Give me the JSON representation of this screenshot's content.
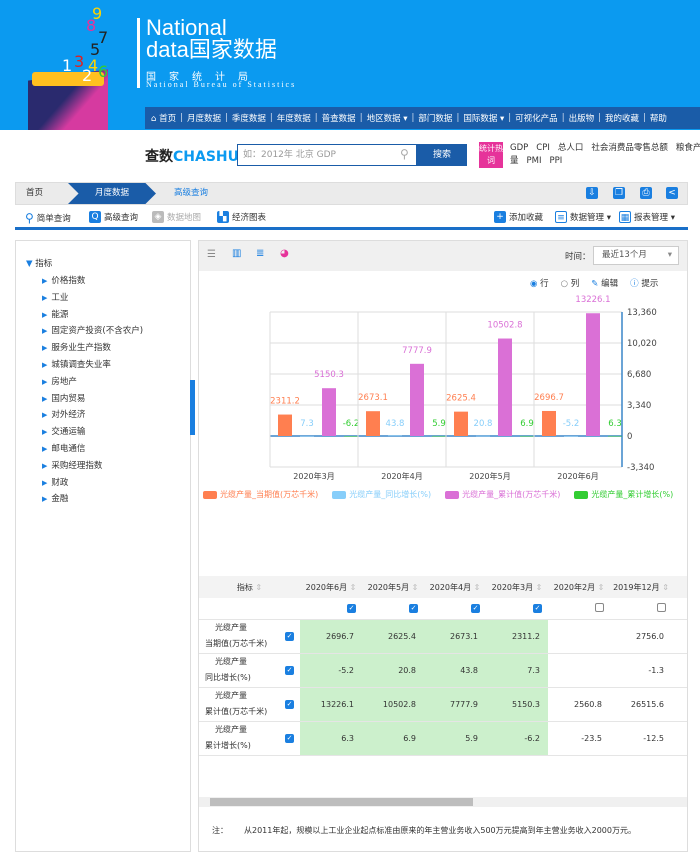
{
  "header": {
    "brand_line1": "National",
    "brand_line2": "data国家数据",
    "org_cn": "国家统计局",
    "org_en": "National Bureau of Statistics",
    "logo_digits": [
      "9",
      "8",
      "7",
      "5",
      "1",
      "3",
      "4",
      "6",
      "2"
    ]
  },
  "nav": {
    "items": [
      "首页",
      "月度数据",
      "季度数据",
      "年度数据",
      "普查数据",
      "地区数据 ▾",
      "部门数据",
      "国际数据 ▾",
      "可视化产品",
      "出版物",
      "我的收藏",
      "帮助"
    ]
  },
  "search": {
    "logo_cn": "查数",
    "logo_en": "CHASHU",
    "placeholder": "如：2012年 北京 GDP",
    "button": "搜索",
    "hot_badge": "统计热词",
    "hot_words": [
      "GDP",
      "CPI",
      "总人口",
      "社会消费品零售总额",
      "粮食产量",
      "PMI",
      "PPI"
    ]
  },
  "breadcrumb": [
    "首页",
    "月度数据",
    "高级查询"
  ],
  "toolbar": {
    "left": [
      "简单查询",
      "高级查询",
      "数据地图",
      "经济图表"
    ],
    "right": [
      "添加收藏",
      "数据管理 ▾",
      "报表管理 ▾"
    ]
  },
  "sidebar": {
    "root": "指标",
    "items": [
      "价格指数",
      "工业",
      "能源",
      "固定资产投资(不含农户)",
      "服务业生产指数",
      "城镇调查失业率",
      "房地产",
      "国内贸易",
      "对外经济",
      "交通运输",
      "邮电通信",
      "采购经理指数",
      "财政",
      "金融"
    ]
  },
  "chart_toolbar": {
    "time_label": "时间：",
    "time_value": "最近13个月",
    "options": {
      "row": "行",
      "col": "列",
      "edit": "编辑",
      "tip": "提示"
    }
  },
  "chart_data": {
    "type": "bar",
    "categories": [
      "2020年3月",
      "2020年4月",
      "2020年5月",
      "2020年6月"
    ],
    "series": [
      {
        "name": "光缆产量_当期值(万芯千米)",
        "color": "#ff7f50",
        "values": [
          2311.2,
          2673.1,
          2625.4,
          2696.7
        ]
      },
      {
        "name": "光缆产量_同比增长(%)",
        "color": "#87cefa",
        "values": [
          7.3,
          43.8,
          20.8,
          -5.2
        ]
      },
      {
        "name": "光缆产量_累计值(万芯千米)",
        "color": "#da70d6",
        "values": [
          5150.3,
          7777.9,
          10502.8,
          13226.1
        ]
      },
      {
        "name": "光缆产量_累计增长(%)",
        "color": "#32cd32",
        "values": [
          -6.2,
          5.9,
          6.9,
          6.3
        ]
      }
    ],
    "ylim": [
      -3340,
      13360
    ],
    "yticks": [
      "13,360",
      "10,020",
      "6,680",
      "3,340",
      "0",
      "-3,340"
    ],
    "ytick_values": [
      13360,
      10020,
      6680,
      3340,
      0,
      -3340
    ],
    "grid": true,
    "legend": "bottom",
    "y_axis_side": "right"
  },
  "table": {
    "header_label": "指标",
    "columns": [
      "2020年6月",
      "2020年5月",
      "2020年4月",
      "2020年3月",
      "2020年2月",
      "2019年12月"
    ],
    "column_checked": [
      true,
      true,
      true,
      true,
      false,
      false
    ],
    "rows": [
      {
        "name1": "光缆产量",
        "name2": "当期值(万芯千米)",
        "values": [
          "2696.7",
          "2625.4",
          "2673.1",
          "2311.2",
          "",
          "2756.0"
        ]
      },
      {
        "name1": "光缆产量",
        "name2": "同比增长(%)",
        "values": [
          "-5.2",
          "20.8",
          "43.8",
          "7.3",
          "",
          "-1.3"
        ]
      },
      {
        "name1": "光缆产量",
        "name2": "累计值(万芯千米)",
        "values": [
          "13226.1",
          "10502.8",
          "7777.9",
          "5150.3",
          "2560.8",
          "26515.6"
        ]
      },
      {
        "name1": "光缆产量",
        "name2": "累计增长(%)",
        "values": [
          "6.3",
          "6.9",
          "5.9",
          "-6.2",
          "-23.5",
          "-12.5"
        ]
      }
    ]
  },
  "note": {
    "label": "注：",
    "text": "从2011年起，规模以上工业企业起点标准由原来的年主营业务收入500万元提高到年主营业务收入2000万元。"
  }
}
